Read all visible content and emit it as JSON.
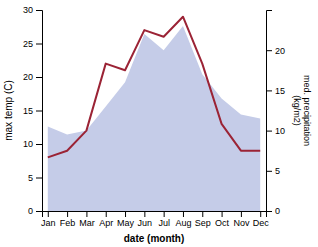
{
  "chart_data": {
    "type": "line",
    "xlabel": "date (month)",
    "ylabel": "max temp (C)",
    "y2label": "med. precipitation\n(kg/m2)",
    "categories": [
      "Jan",
      "Feb",
      "Mar",
      "Apr",
      "May",
      "Jun",
      "Jul",
      "Aug",
      "Sep",
      "Oct",
      "Nov",
      "Dec"
    ],
    "series": [
      {
        "type": "area",
        "axis": "y2",
        "color": "#c5cce8",
        "values": [
          10.5,
          9.5,
          10,
          13,
          16,
          22,
          20,
          23,
          17,
          14,
          12,
          11.5
        ]
      },
      {
        "type": "line",
        "color": "#9b2335",
        "values": [
          8,
          9,
          12,
          22,
          21,
          27,
          26,
          29,
          22,
          13,
          9,
          9
        ]
      }
    ],
    "ylim": [
      0,
      30
    ],
    "yticks": [
      0,
      5,
      10,
      15,
      20,
      25,
      30
    ],
    "y2lim": [
      0,
      25
    ],
    "y2ticks": [
      0,
      5,
      10,
      15,
      20
    ],
    "grid": false
  }
}
